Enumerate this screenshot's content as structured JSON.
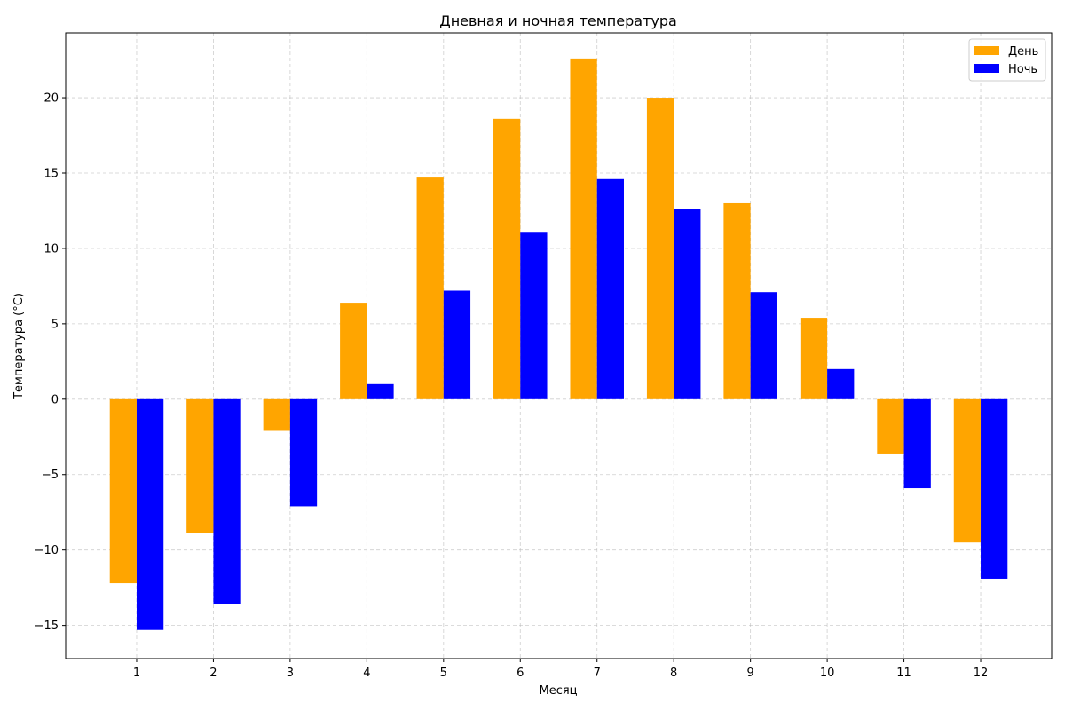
{
  "chart_data": {
    "type": "bar",
    "title": "Дневная и ночная температура",
    "xlabel": "Месяц",
    "ylabel": "Температура (°C)",
    "categories": [
      "1",
      "2",
      "3",
      "4",
      "5",
      "6",
      "7",
      "8",
      "9",
      "10",
      "11",
      "12"
    ],
    "series": [
      {
        "name": "День",
        "color": "#ffa500",
        "values": [
          -12.2,
          -8.9,
          -2.1,
          6.4,
          14.7,
          18.6,
          22.6,
          20.0,
          13.0,
          5.4,
          -3.6,
          -9.5
        ]
      },
      {
        "name": "Ночь",
        "color": "#0000ff",
        "values": [
          -15.3,
          -13.6,
          -7.1,
          1.0,
          7.2,
          11.1,
          14.6,
          12.6,
          7.1,
          2.0,
          -5.9,
          -11.9
        ]
      }
    ],
    "ylim": [
      -17.2,
      24.3
    ],
    "yticks": [
      -15,
      -10,
      -5,
      0,
      5,
      10,
      15,
      20
    ],
    "ytick_labels": [
      "−15",
      "−10",
      "−5",
      "0",
      "5",
      "10",
      "15",
      "20"
    ],
    "grid": true,
    "legend_position": "top-right"
  }
}
